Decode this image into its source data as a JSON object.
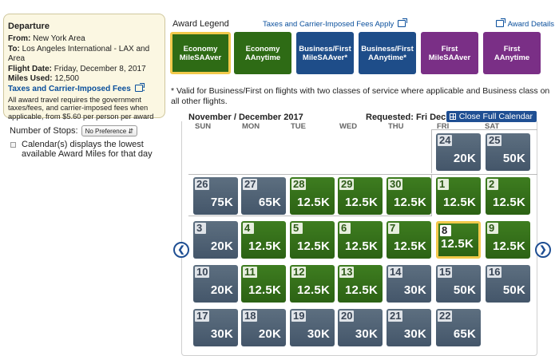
{
  "departure": {
    "title": "Departure",
    "from_label": "From:",
    "from_value": "New York Area",
    "to_label": "To:",
    "to_value": "Los Angeles International - LAX and Area",
    "date_label": "Flight Date:",
    "date_value": "Friday, December 8, 2017",
    "miles_label": "Miles Used:",
    "miles_value": "12,500",
    "fees_link": "Taxes and Carrier-Imposed Fees",
    "fees_text": "All award travel requires the government taxes/fees, and carrier-imposed fees when applicable, from $5.60 per person per award"
  },
  "filters": {
    "stops_label": "Number of Stops:",
    "stops_value": "No Preference",
    "calendar_note": "Calendar(s) displays the lowest available Award Miles for that day"
  },
  "legend": {
    "label": "Award Legend",
    "taxes_link": "Taxes and Carrier-Imposed Fees Apply",
    "details_link": "Award Details",
    "items": [
      {
        "line1": "Economy",
        "line2": "MileSAAver"
      },
      {
        "line1": "Economy",
        "line2": "AAnytime"
      },
      {
        "line1": "Business/First",
        "line2": "MileSAAver*"
      },
      {
        "line1": "Business/First",
        "line2": "AAnytime*"
      },
      {
        "line1": "First",
        "line2": "MileSAAver"
      },
      {
        "line1": "First",
        "line2": "AAnytime"
      }
    ],
    "colors": {
      "economy": "#2e6b15",
      "business": "#1e4d89",
      "first": "#7a2f86",
      "selected_border": "#f2c94b"
    },
    "note": "* Valid for Business/First on flights with two classes of service where applicable and Business class on all other flights."
  },
  "calendar": {
    "month": "November / December 2017",
    "requested": "Requested: Fri Dec 8",
    "close_button": "Close Full Calendar",
    "weekdays": [
      "SUN",
      "MON",
      "TUE",
      "WED",
      "THU",
      "FRI",
      "SAT"
    ],
    "weeks": [
      [
        null,
        null,
        null,
        null,
        null,
        {
          "day": "24",
          "miles": "20K",
          "type": "grey"
        },
        {
          "day": "25",
          "miles": "50K",
          "type": "grey"
        }
      ],
      [
        {
          "day": "26",
          "miles": "75K",
          "type": "grey"
        },
        {
          "day": "27",
          "miles": "65K",
          "type": "grey"
        },
        {
          "day": "28",
          "miles": "12.5K",
          "type": "green"
        },
        {
          "day": "29",
          "miles": "12.5K",
          "type": "green"
        },
        {
          "day": "30",
          "miles": "12.5K",
          "type": "green"
        },
        {
          "day": "1",
          "miles": "12.5K",
          "type": "green"
        },
        {
          "day": "2",
          "miles": "12.5K",
          "type": "green"
        }
      ],
      [
        {
          "day": "3",
          "miles": "20K",
          "type": "grey"
        },
        {
          "day": "4",
          "miles": "12.5K",
          "type": "green"
        },
        {
          "day": "5",
          "miles": "12.5K",
          "type": "green"
        },
        {
          "day": "6",
          "miles": "12.5K",
          "type": "green"
        },
        {
          "day": "7",
          "miles": "12.5K",
          "type": "green"
        },
        {
          "day": "8",
          "miles": "12.5K",
          "type": "green",
          "selected": true
        },
        {
          "day": "9",
          "miles": "12.5K",
          "type": "green"
        }
      ],
      [
        {
          "day": "10",
          "miles": "20K",
          "type": "grey"
        },
        {
          "day": "11",
          "miles": "12.5K",
          "type": "green"
        },
        {
          "day": "12",
          "miles": "12.5K",
          "type": "green"
        },
        {
          "day": "13",
          "miles": "12.5K",
          "type": "green"
        },
        {
          "day": "14",
          "miles": "30K",
          "type": "grey"
        },
        {
          "day": "15",
          "miles": "50K",
          "type": "grey"
        },
        {
          "day": "16",
          "miles": "50K",
          "type": "grey"
        }
      ],
      [
        {
          "day": "17",
          "miles": "30K",
          "type": "grey"
        },
        {
          "day": "18",
          "miles": "20K",
          "type": "grey"
        },
        {
          "day": "19",
          "miles": "30K",
          "type": "grey"
        },
        {
          "day": "20",
          "miles": "30K",
          "type": "grey"
        },
        {
          "day": "21",
          "miles": "30K",
          "type": "grey"
        },
        {
          "day": "22",
          "miles": "65K",
          "type": "grey"
        },
        null
      ]
    ],
    "prev_icon": "chevron-left-icon",
    "next_icon": "chevron-right-icon"
  }
}
